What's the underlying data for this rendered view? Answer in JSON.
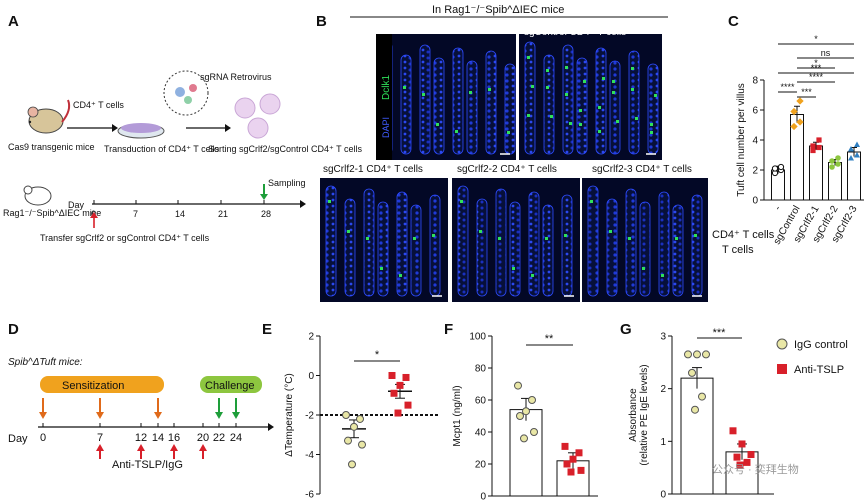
{
  "panel_letters": {
    "A": "A",
    "B": "B",
    "C": "C",
    "D": "D",
    "E": "E",
    "F": "F",
    "G": "G"
  },
  "panel_a": {
    "mouse_label": "Cas9 transgenic mice",
    "arrow1_label": "CD4⁺ T cells",
    "dish_label": "Transduction of CD4⁺ T cells",
    "sgrna_label": "sgRNA Retrovirus",
    "sorting_label": "Sorting sgCrlf2/sgControl CD4⁺ T cells",
    "recipient_label": "Rag1⁻/⁻Spib^ΔIEC mice",
    "day_label": "Day",
    "timeline_ticks": [
      "0",
      "7",
      "14",
      "21",
      "28"
    ],
    "sampling_label": "Sampling",
    "transfer_label": "Transfer sgCrlf2 or sgControl CD4⁺ T cells"
  },
  "panel_b": {
    "header": "In Rag1⁻/⁻Spib^ΔIEC mice",
    "stain_label": "Dclk1",
    "dapi_label": "DAPI",
    "images": [
      {
        "label": "sgControl CD4⁺ T cells"
      },
      {
        "label": "sgCrlf2-1 CD4⁺ T cells"
      },
      {
        "label": "sgCrlf2-2 CD4⁺ T cells"
      },
      {
        "label": "sgCrlf2-3 CD4⁺ T cells"
      }
    ],
    "colors": {
      "nuclei": "#1a2fd6",
      "tuft": "#2fe05a",
      "background": "#030826"
    }
  },
  "panel_c_labels": {
    "row_label": "CD4⁺ T cells",
    "row_label_2": "T cells"
  },
  "panel_d": {
    "mice_label": "Spib^ΔTuft mice:",
    "sensitization": "Sensitization",
    "challenge": "Challenge",
    "day_label": "Day",
    "ticks": [
      "0",
      "7",
      "12",
      "14",
      "16",
      "20",
      "22",
      "24"
    ],
    "treatment": "Anti-TSLP/IgG",
    "colors": {
      "sensitization": "#f0a21e",
      "challenge": "#8dc63f",
      "sens_arrow": "#e06a1a",
      "challenge_arrow": "#1e9e3a",
      "treatment_arrow": "#d8202a"
    }
  },
  "legend": {
    "items": [
      {
        "label": "IgG control",
        "color": "#e9e7a6"
      },
      {
        "label": "Anti-TSLP",
        "color": "#d8202a"
      }
    ]
  },
  "watermark": "公众号 · 奕拜生物",
  "chart_data": [
    {
      "panel": "C",
      "type": "bar",
      "ylabel": "Tuft cell number per villus",
      "ylim": [
        0,
        8
      ],
      "yticks": [
        0,
        2,
        4,
        6,
        8
      ],
      "categories": [
        "-",
        "sgControl",
        "sgCrlf2-1",
        "sgCrlf2-2",
        "sgCrlf2-3"
      ],
      "values": [
        2.0,
        5.7,
        3.6,
        2.5,
        3.2
      ],
      "errors": [
        0.25,
        0.55,
        0.25,
        0.2,
        0.3
      ],
      "colors": [
        "#ffffff",
        "#f0a21e",
        "#d8202a",
        "#8dc63f",
        "#2f7fc1"
      ],
      "points": [
        [
          1.8,
          2.0,
          2.1,
          2.2
        ],
        [
          4.9,
          5.2,
          5.9,
          6.6
        ],
        [
          3.3,
          3.5,
          3.6,
          4.0
        ],
        [
          2.2,
          2.4,
          2.6,
          2.8
        ],
        [
          2.8,
          3.0,
          3.4,
          3.7
        ]
      ],
      "comparisons": [
        {
          "from": 0,
          "to": 4,
          "label": "*"
        },
        {
          "from": 1,
          "to": 4,
          "label": "ns"
        },
        {
          "from": 1,
          "to": 3,
          "label": "*"
        },
        {
          "from": 0,
          "to": 4,
          "label": "***"
        },
        {
          "from": 1,
          "to": 3,
          "label": "****"
        },
        {
          "from": 0,
          "to": 1,
          "label": "****"
        },
        {
          "from": 1,
          "to": 2,
          "label": "***"
        }
      ]
    },
    {
      "panel": "E",
      "type": "scatter",
      "ylabel": "ΔTemperature (°C)",
      "ylim": [
        -6,
        2
      ],
      "yticks": [
        -6,
        -4,
        -2,
        0,
        2
      ],
      "reference_line": -2,
      "groups": [
        {
          "name": "IgG control",
          "mean": -2.7,
          "sem": 0.45,
          "points": [
            -2.0,
            -2.2,
            -2.6,
            -3.3,
            -3.5,
            -4.5
          ]
        },
        {
          "name": "Anti-TSLP",
          "mean": -0.8,
          "sem": 0.35,
          "points": [
            0.0,
            -0.1,
            -0.5,
            -0.9,
            -1.5,
            -1.9
          ]
        }
      ],
      "significance": "*"
    },
    {
      "panel": "F",
      "type": "bar",
      "ylabel": "Mcpt1 (ng/ml)",
      "ylim": [
        0,
        100
      ],
      "yticks": [
        0,
        20,
        40,
        60,
        80,
        100
      ],
      "categories": [
        "IgG control",
        "Anti-TSLP"
      ],
      "values": [
        54,
        22
      ],
      "errors": [
        7,
        5
      ],
      "points": [
        [
          69,
          60,
          53,
          50,
          40,
          36
        ],
        [
          31,
          27,
          23,
          20,
          16,
          15
        ]
      ],
      "significance": "**"
    },
    {
      "panel": "G",
      "type": "bar",
      "ylabel": "Absorbance (relative PE IgE levels)",
      "ylim": [
        0,
        3
      ],
      "yticks": [
        0,
        1,
        2,
        3
      ],
      "categories": [
        "IgG control",
        "Anti-TSLP"
      ],
      "values": [
        2.2,
        0.8
      ],
      "errors": [
        0.2,
        0.15
      ],
      "points": [
        [
          2.65,
          2.65,
          2.65,
          2.3,
          1.85,
          1.6
        ],
        [
          1.2,
          0.95,
          0.75,
          0.7,
          0.6,
          0.55
        ]
      ],
      "significance": "***"
    }
  ]
}
